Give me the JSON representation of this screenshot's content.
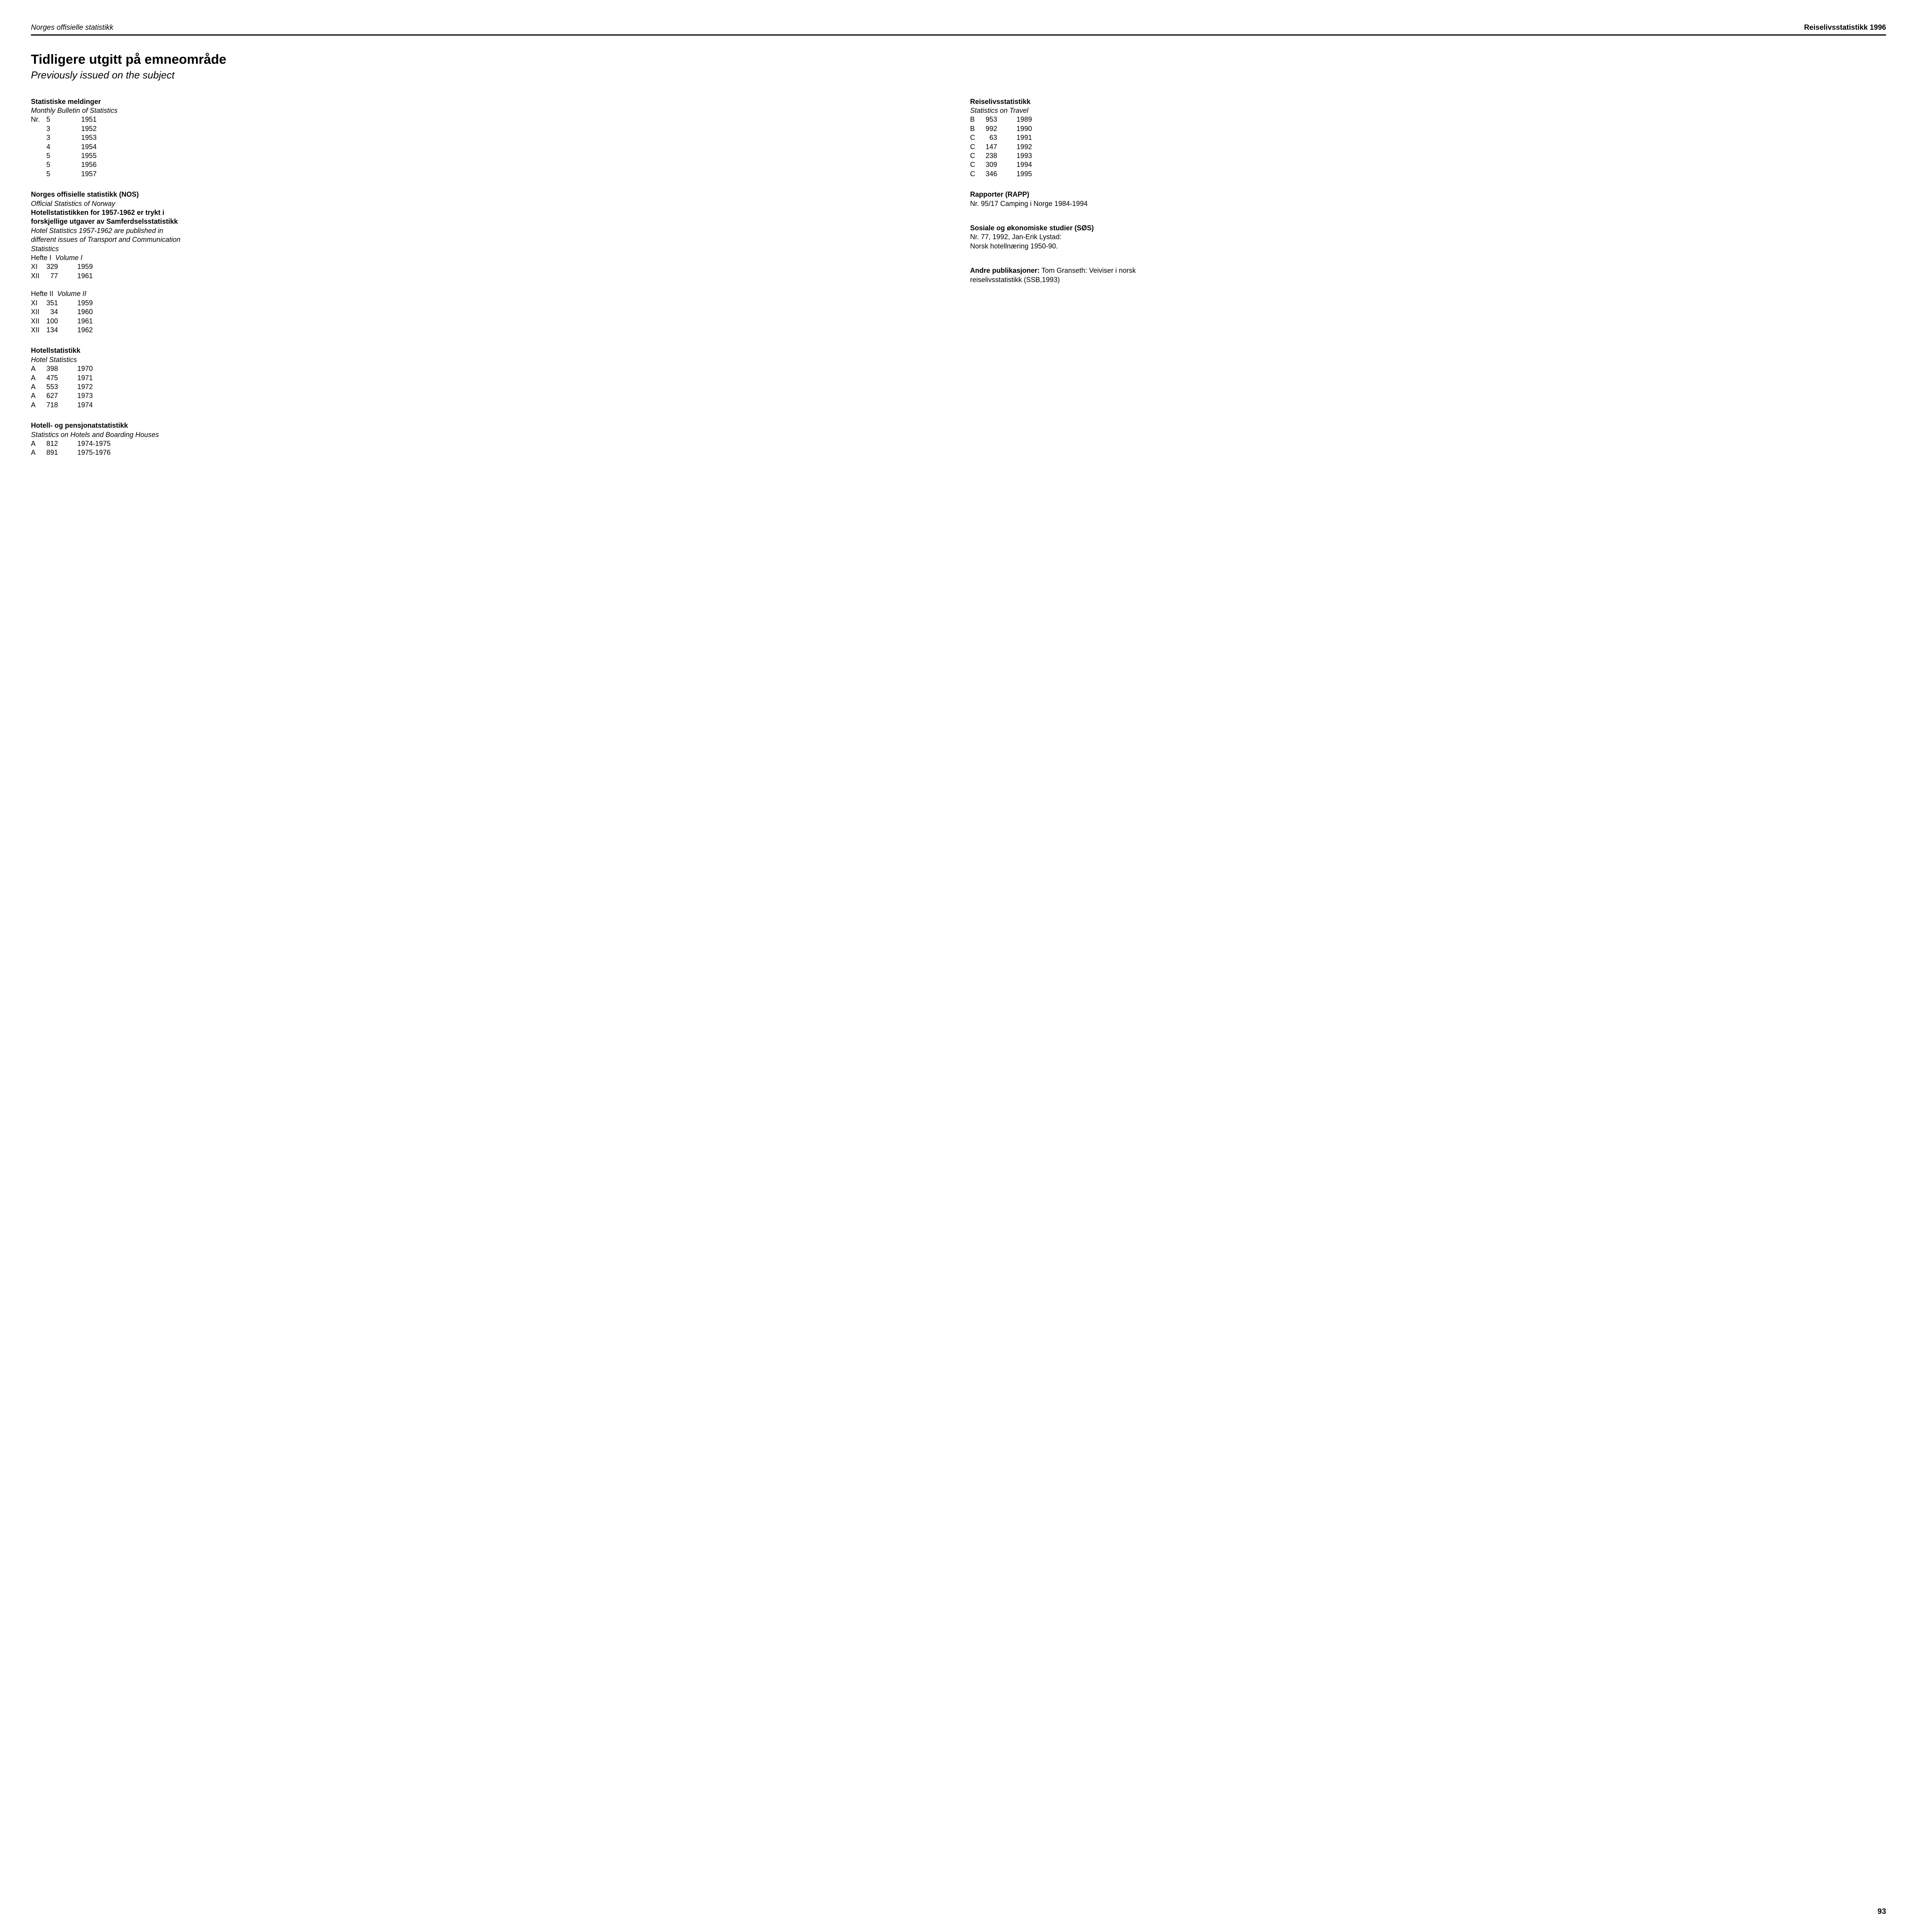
{
  "header": {
    "left": "Norges offisielle statistikk",
    "right": "Reiselivsstatistikk 1996"
  },
  "title": "Tidligere utgitt på emneområde",
  "subtitle": "Previously issued on the subject",
  "pageNumber": "93",
  "left": {
    "statMeld": {
      "title": "Statistiske meldinger",
      "subtitle": "Monthly Bulletin of Statistics",
      "prefix": "Nr.",
      "rows": [
        {
          "c1": "5",
          "c2": "1951"
        },
        {
          "c1": "3",
          "c2": "1952"
        },
        {
          "c1": "3",
          "c2": "1953"
        },
        {
          "c1": "4",
          "c2": "1954"
        },
        {
          "c1": "5",
          "c2": "1955"
        },
        {
          "c1": "5",
          "c2": "1956"
        },
        {
          "c1": "5",
          "c2": "1957"
        }
      ]
    },
    "nos": {
      "title": "Norges offisielle statistikk (NOS)",
      "subtitle": "Official Statistics of Norway",
      "boldLine1": "Hotellstatistikken for 1957-1962 er trykt i",
      "boldLine2": "forskjellige utgaver av Samferdselsstatistikk",
      "italicLine1": "Hotel Statistics 1957-1962 are published in",
      "italicLine2": "different issues of Transport and Communication",
      "italicLine3": "Statistics",
      "hefte1Label": "Hefte I",
      "hefte1Italic": "Volume I",
      "hefte1Rows": [
        {
          "c1": "XI",
          "c2": "329",
          "c3": "1959"
        },
        {
          "c1": "XII",
          "c2": "77",
          "c3": "1961"
        }
      ],
      "hefte2Label": "Hefte II",
      "hefte2Italic": "Volume II",
      "hefte2Rows": [
        {
          "c1": "XI",
          "c2": "351",
          "c3": "1959"
        },
        {
          "c1": "XII",
          "c2": "34",
          "c3": "1960"
        },
        {
          "c1": "XII",
          "c2": "100",
          "c3": "1961"
        },
        {
          "c1": "XII",
          "c2": "134",
          "c3": "1962"
        }
      ]
    },
    "hotellstat": {
      "title": "Hotellstatistikk",
      "subtitle": "Hotel Statistics",
      "rows": [
        {
          "c1": "A",
          "c2": "398",
          "c3": "1970"
        },
        {
          "c1": "A",
          "c2": "475",
          "c3": "1971"
        },
        {
          "c1": "A",
          "c2": "553",
          "c3": "1972"
        },
        {
          "c1": "A",
          "c2": "627",
          "c3": "1973"
        },
        {
          "c1": "A",
          "c2": "718",
          "c3": "1974"
        }
      ]
    },
    "hotellPensjonat": {
      "title": "Hotell- og pensjonatstatistikk",
      "subtitle": "Statistics on Hotels and Boarding Houses",
      "rows": [
        {
          "c1": "A",
          "c2": "812",
          "c3": "1974-1975"
        },
        {
          "c1": "A",
          "c2": "891",
          "c3": "1975-1976"
        }
      ]
    }
  },
  "right": {
    "reiseliv": {
      "title": "Reiselivsstatistikk",
      "subtitle": "Statistics on Travel",
      "rows": [
        {
          "c1": "B",
          "c2": "953",
          "c3": "1989"
        },
        {
          "c1": "B",
          "c2": "992",
          "c3": "1990"
        },
        {
          "c1": "C",
          "c2": "63",
          "c3": "1991"
        },
        {
          "c1": "C",
          "c2": "147",
          "c3": "1992"
        },
        {
          "c1": "C",
          "c2": "238",
          "c3": "1993"
        },
        {
          "c1": "C",
          "c2": "309",
          "c3": "1994"
        },
        {
          "c1": "C",
          "c2": "346",
          "c3": "1995"
        }
      ]
    },
    "rapporter": {
      "title": "Rapporter  (RAPP)",
      "line": "Nr. 95/17 Camping i Norge 1984-1994"
    },
    "sos": {
      "title": "Sosiale og økonomiske studier (SØS)",
      "line1": "Nr. 77, 1992, Jan-Erik Lystad:",
      "line2": "Norsk hotellnæring 1950-90."
    },
    "andre": {
      "titlePrefix": "Andre publikasjoner:",
      "text1": " Tom Granseth: Veiviser i norsk",
      "text2": "reiselivsstatistikk (SSB,1993)"
    }
  }
}
